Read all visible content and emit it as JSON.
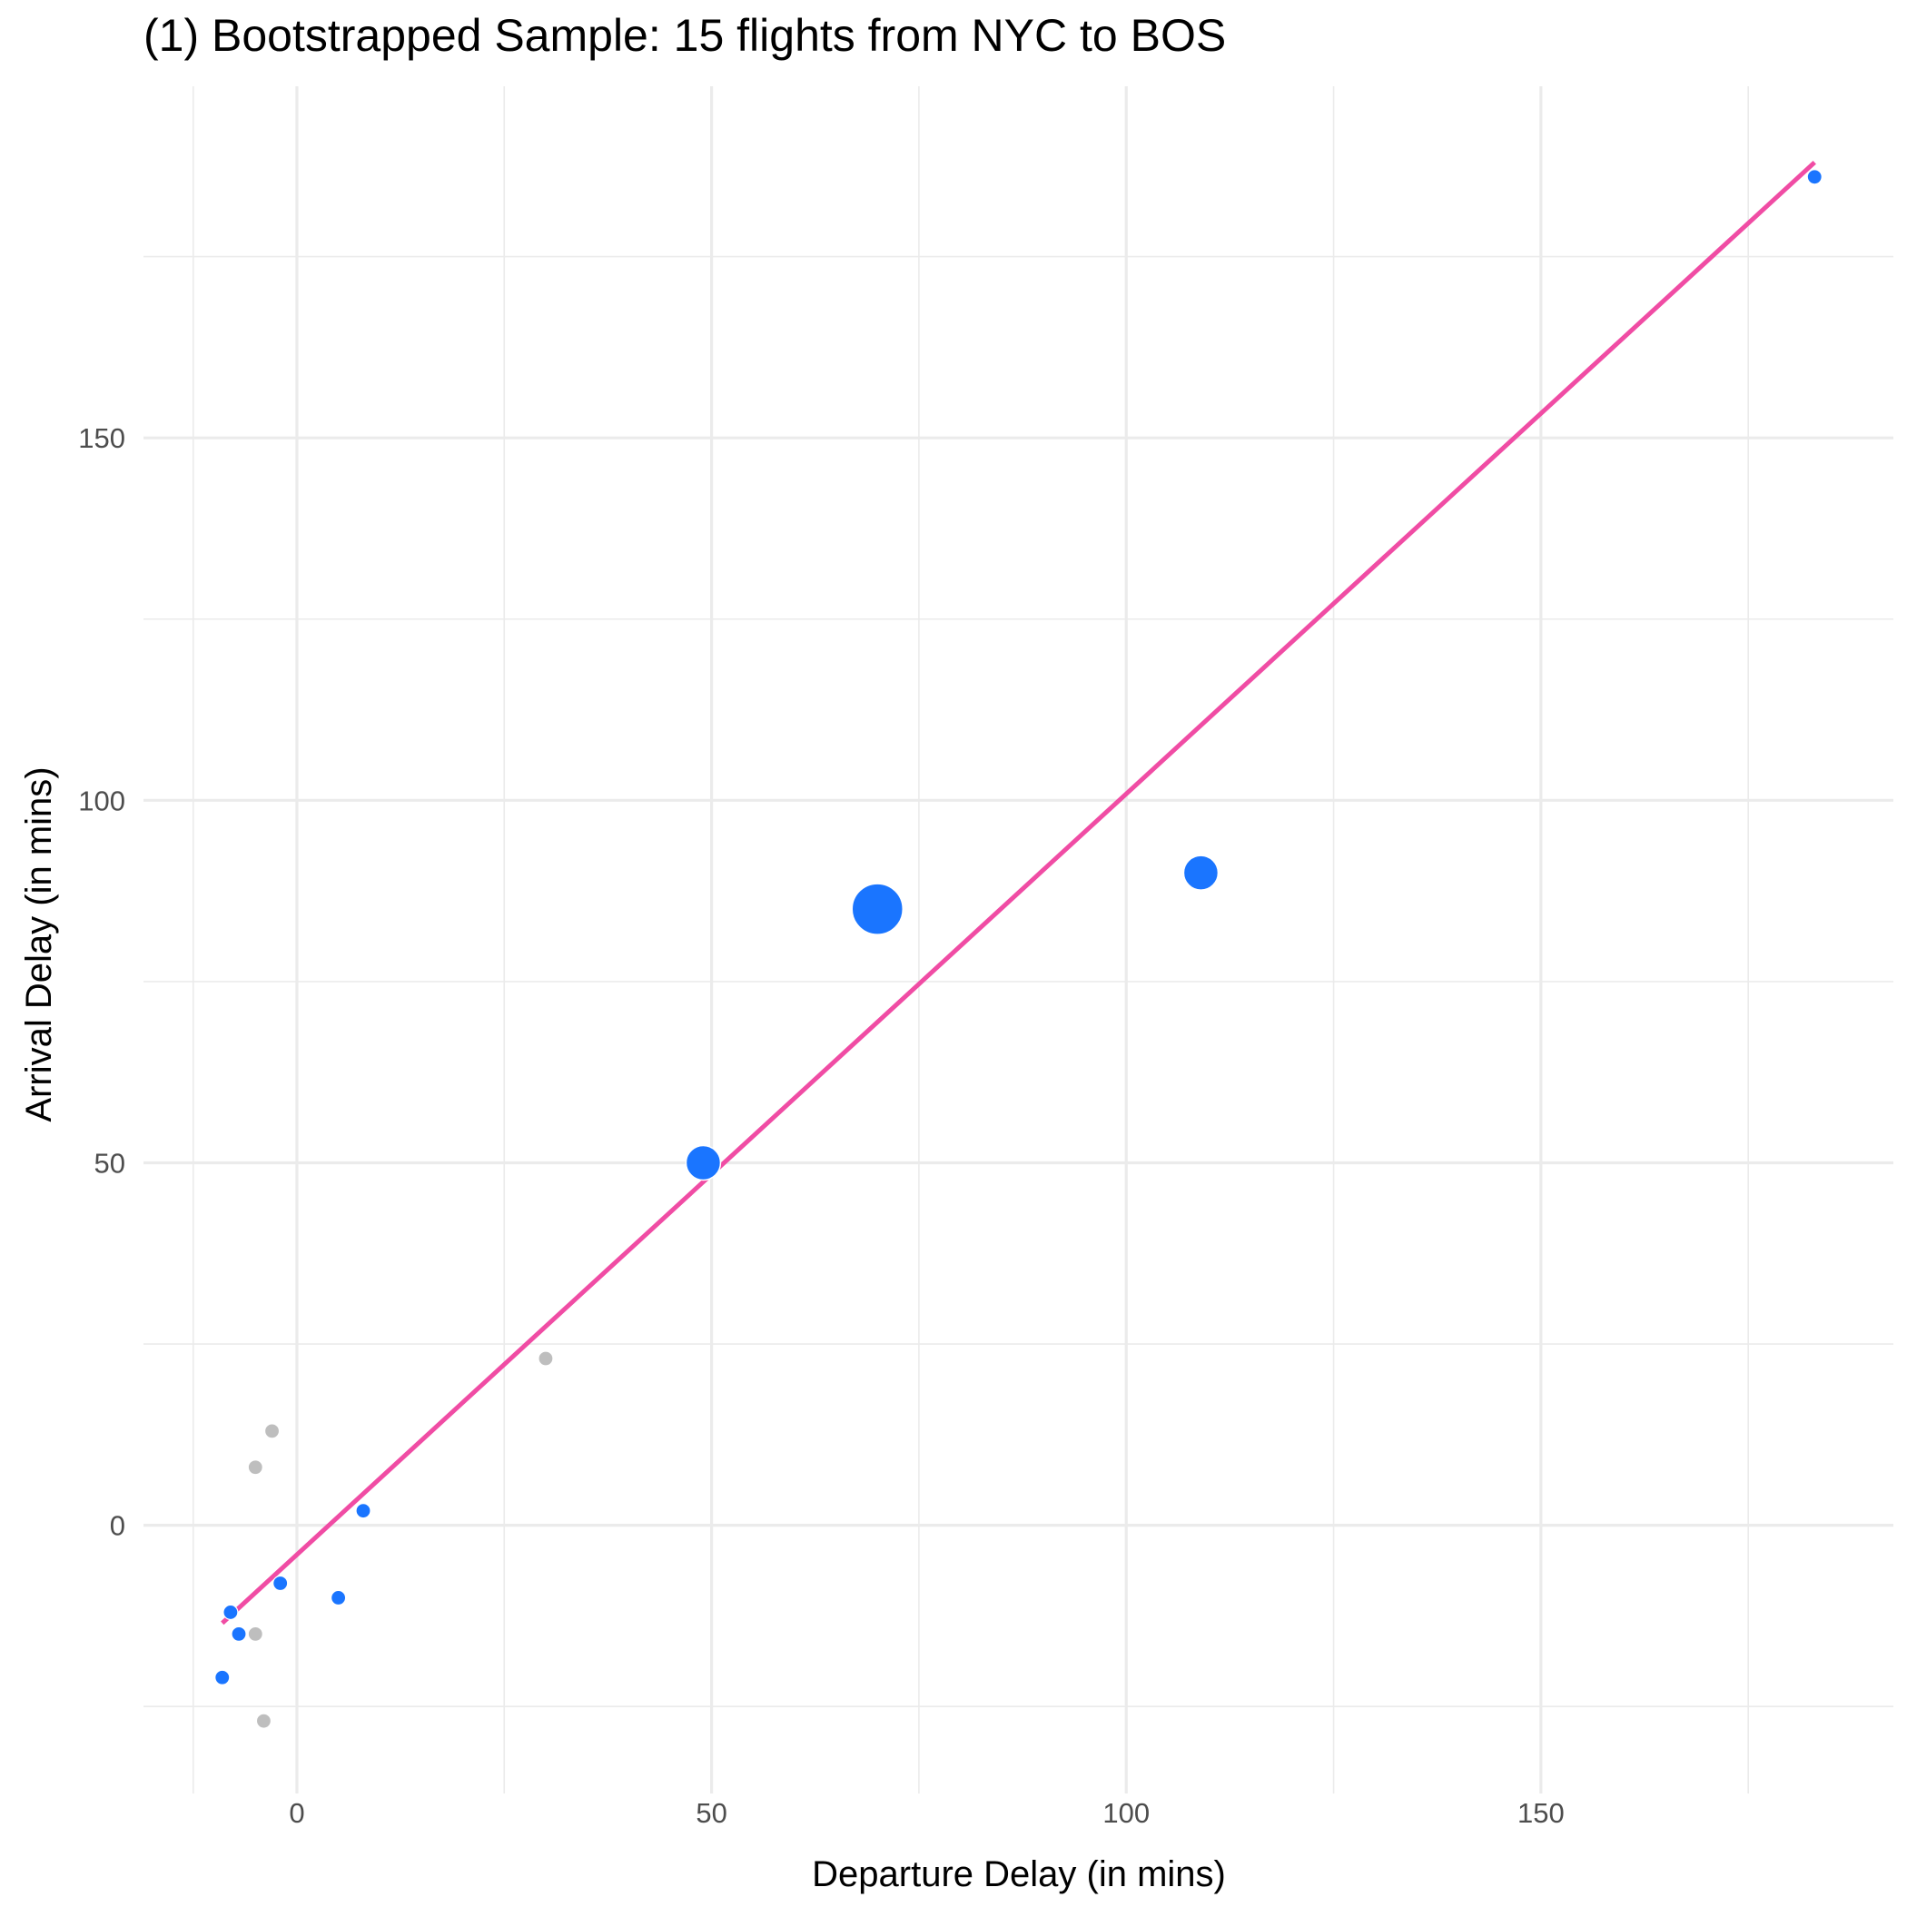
{
  "chart_data": {
    "type": "scatter",
    "title": "(1) Bootstrapped Sample: 15 flights from NYC to BOS",
    "xlabel": "Departure Delay (in mins)",
    "ylabel": "Arrival Delay (in mins)",
    "xlim": [
      -18.5,
      192.5
    ],
    "ylim": [
      -37,
      198.5
    ],
    "x_ticks": [
      0,
      50,
      100,
      150
    ],
    "x_tick_labels": [
      "0",
      "50",
      "100",
      "150"
    ],
    "y_ticks": [
      0,
      50,
      100,
      150
    ],
    "y_tick_labels": [
      "0",
      "50",
      "100",
      "150"
    ],
    "x_minor_ticks": [
      -12.5,
      25,
      75,
      125,
      175
    ],
    "y_minor_ticks": [
      -25,
      25,
      75,
      125,
      175
    ],
    "grid": true,
    "legend": "none",
    "colors": {
      "selected": "#1a75ff",
      "unselected": "#bebebe",
      "fit_line": "#f04ca4",
      "grid": "#ebebeb"
    },
    "points": [
      {
        "x": 183,
        "y": 186,
        "weight": 1,
        "selected": true
      },
      {
        "x": 70,
        "y": 85,
        "weight": 4,
        "selected": true
      },
      {
        "x": 109,
        "y": 90,
        "weight": 2,
        "selected": true
      },
      {
        "x": 49,
        "y": 50,
        "weight": 2,
        "selected": true
      },
      {
        "x": 30,
        "y": 23,
        "weight": 1,
        "selected": false
      },
      {
        "x": 8,
        "y": 2,
        "weight": 1,
        "selected": true
      },
      {
        "x": 5,
        "y": -10,
        "weight": 1,
        "selected": true
      },
      {
        "x": -2,
        "y": -8,
        "weight": 1,
        "selected": true
      },
      {
        "x": -3,
        "y": 13,
        "weight": 1,
        "selected": false
      },
      {
        "x": -5,
        "y": 8,
        "weight": 1,
        "selected": false
      },
      {
        "x": -5,
        "y": -15,
        "weight": 1,
        "selected": false
      },
      {
        "x": -4,
        "y": -27,
        "weight": 1,
        "selected": false
      },
      {
        "x": -8,
        "y": -12,
        "weight": 1,
        "selected": true
      },
      {
        "x": -7,
        "y": -15,
        "weight": 1,
        "selected": true
      },
      {
        "x": -9,
        "y": -21,
        "weight": 1,
        "selected": true
      }
    ],
    "fit_line": {
      "x": [
        -9,
        183
      ],
      "y": [
        -13.5,
        188
      ]
    }
  }
}
